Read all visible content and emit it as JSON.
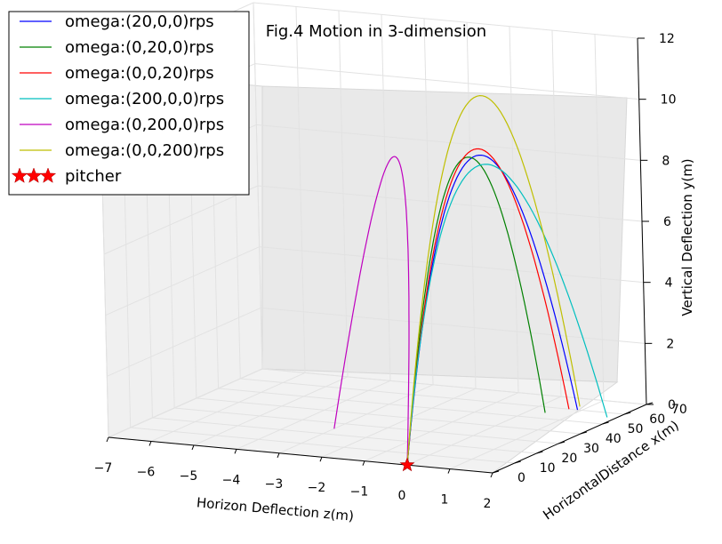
{
  "chart_data": {
    "type": "line",
    "projection": "3d",
    "title": "Fig.4 Motion in 3-dimension",
    "xlabel": "Horizon Deflection z(m)",
    "ylabel": "HorizontalDistance x(m)",
    "zlabel": "Vertical Deflection y(m)",
    "x_ticks": [
      "−7",
      "−6",
      "−5",
      "−4",
      "−3",
      "−2",
      "−1",
      "0",
      "1",
      "2"
    ],
    "y_ticks": [
      "0",
      "10",
      "20",
      "30",
      "40",
      "50",
      "60",
      "70"
    ],
    "z_ticks": [
      "0",
      "2",
      "4",
      "6",
      "8",
      "10",
      "12"
    ],
    "xlim": [
      -7,
      2
    ],
    "ylim": [
      0,
      70
    ],
    "zlim": [
      0,
      12
    ],
    "grid": true,
    "legend_position": "top-left",
    "series": [
      {
        "name": "omega:(20,0,0)rps",
        "color": "#0000ff",
        "z_end": 0.9,
        "x_end": 60,
        "peak_height": 9.2
      },
      {
        "name": "omega:(0,20,0)rps",
        "color": "#008000",
        "z_end": 0.4,
        "x_end": 55,
        "peak_height": 9.2
      },
      {
        "name": "omega:(0,0,20)rps",
        "color": "#ff0000",
        "z_end": 0.7,
        "x_end": 60,
        "peak_height": 9.4
      },
      {
        "name": "omega:(200,0,0)rps",
        "color": "#00bfbf",
        "z_end": 1.8,
        "x_end": 56,
        "peak_height": 9.0
      },
      {
        "name": "omega:(0,200,0)rps",
        "color": "#bf00bf",
        "z_end": -3.0,
        "x_end": 25,
        "peak_height": 9.6
      },
      {
        "name": "omega:(0,0,200)rps",
        "color": "#bfbf00",
        "z_end": 0.8,
        "x_end": 63,
        "peak_height": 11.1
      }
    ],
    "marker": {
      "name": "pitcher",
      "color": "#ff0000",
      "x": 0,
      "y": 0,
      "z": 0
    }
  }
}
